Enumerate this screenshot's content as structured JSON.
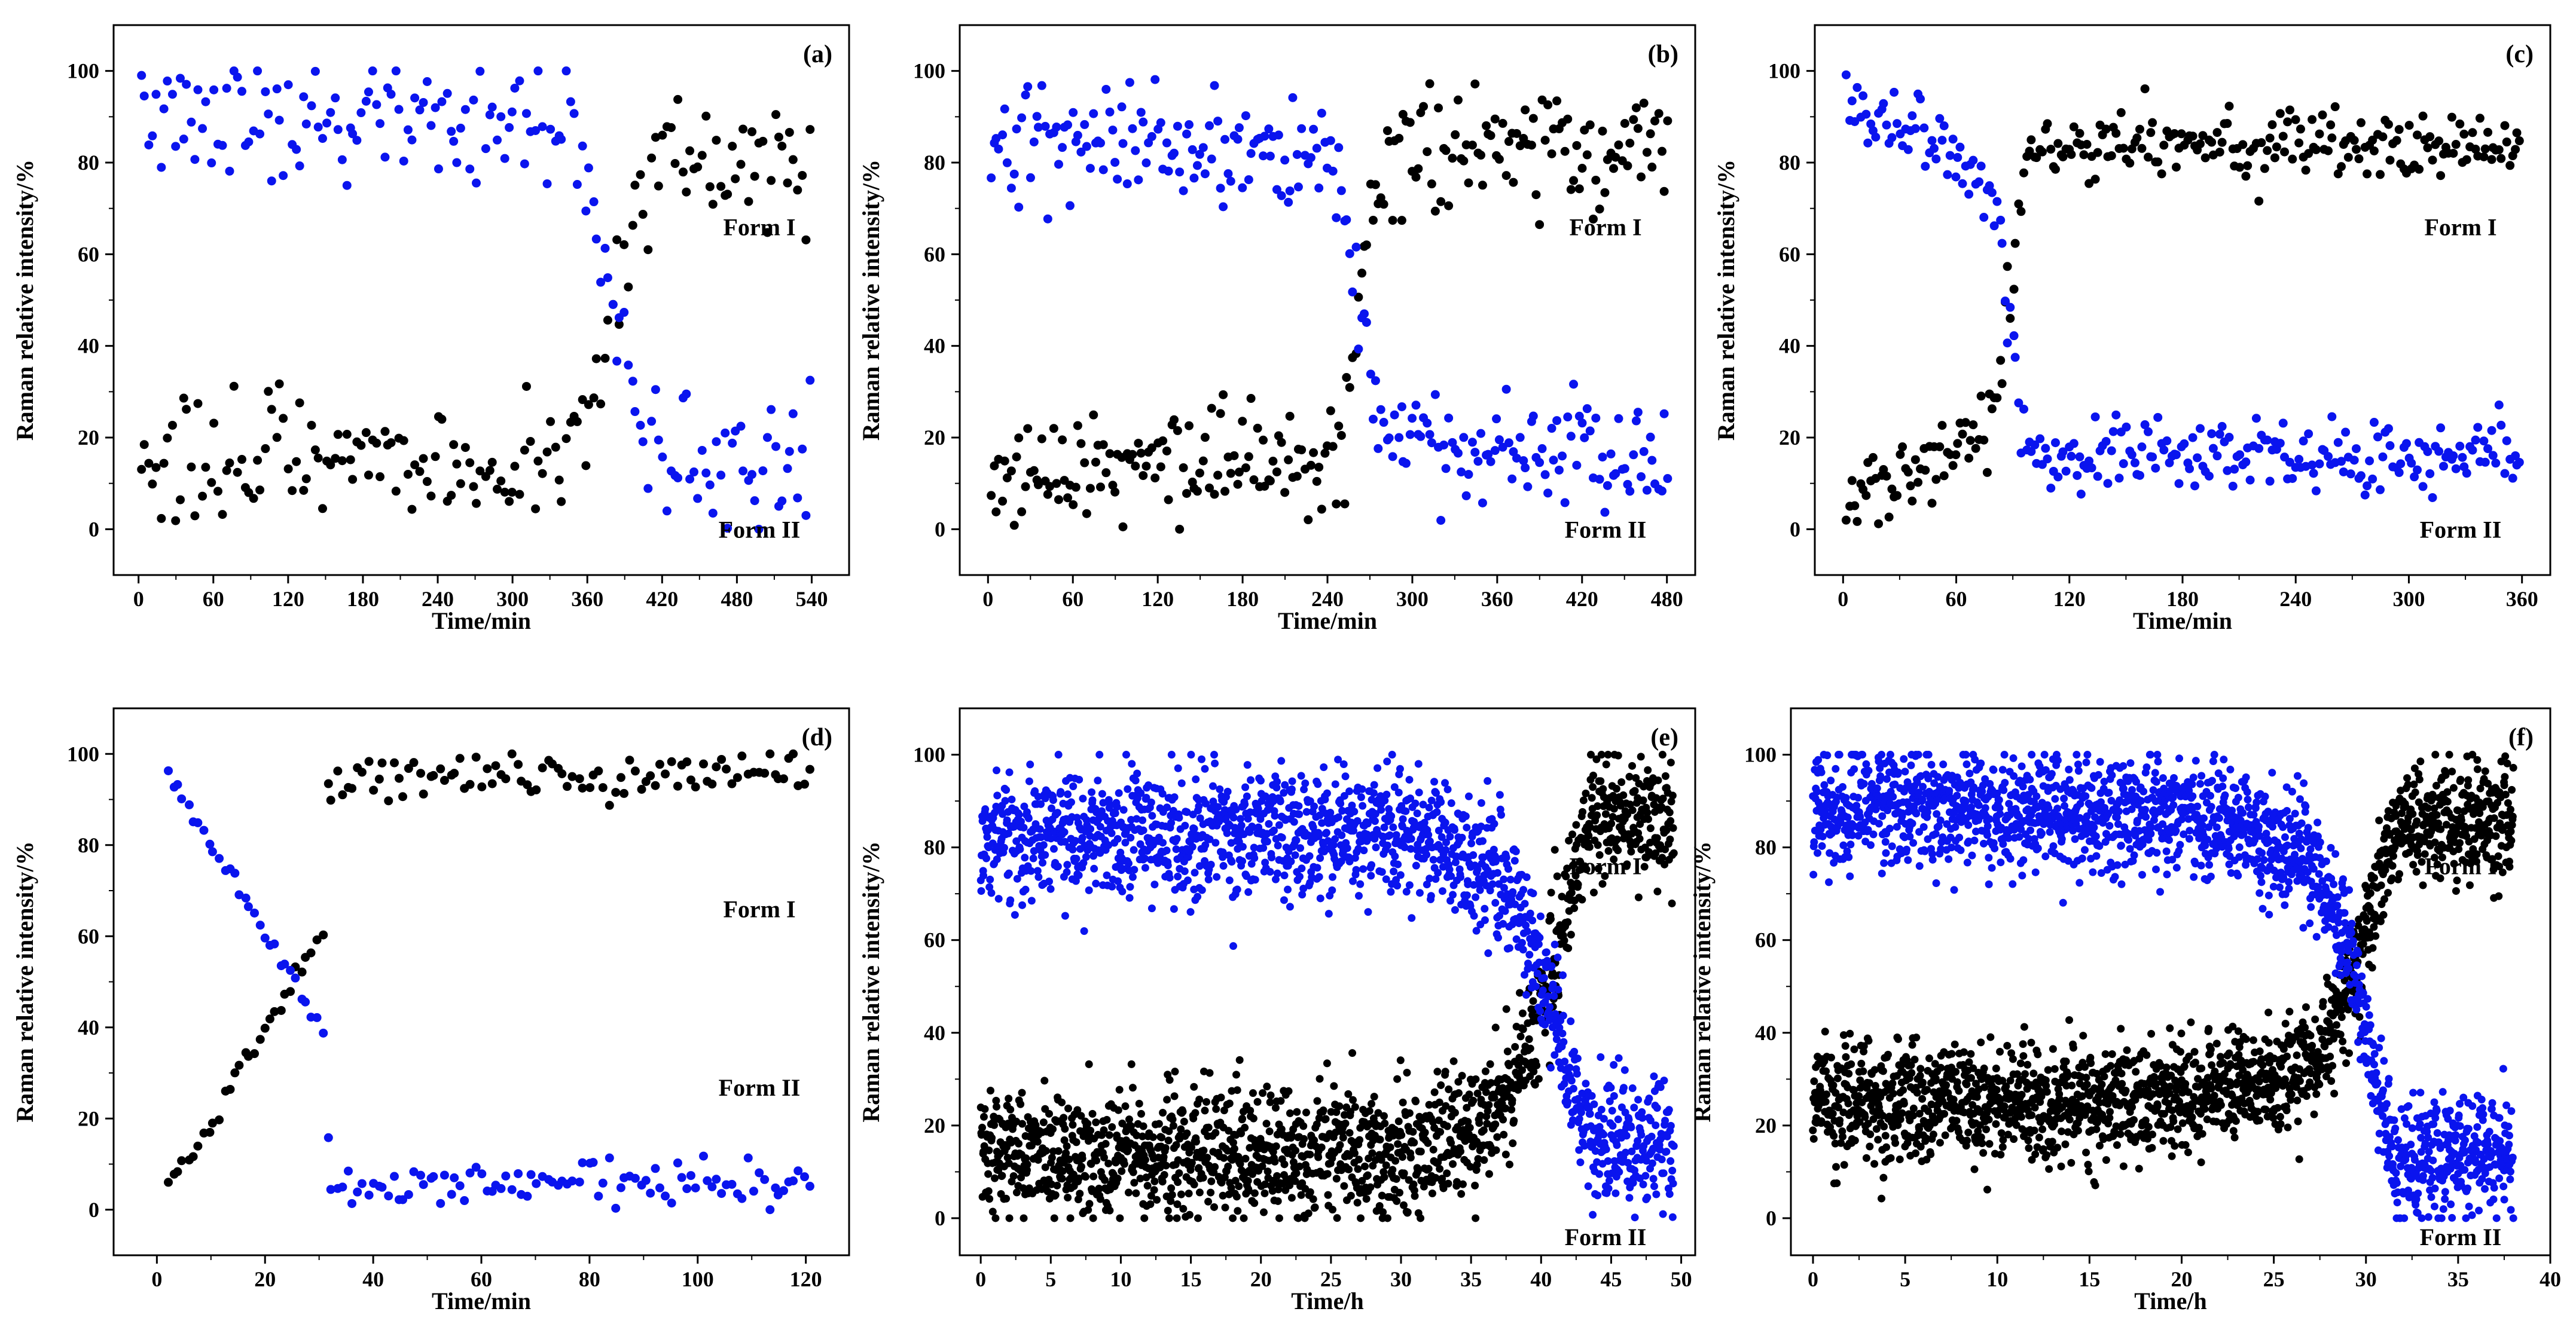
{
  "colors": {
    "form_i": "#000000",
    "form_ii": "#0a14ee"
  },
  "chart_data": [
    {
      "type": "scatter",
      "panel": "(a)",
      "xlabel": "Time/min",
      "ylabel": "Raman relative intensity/%",
      "xlim": [
        -20,
        570
      ],
      "ylim": [
        -10,
        110
      ],
      "xticks": [
        0,
        60,
        120,
        180,
        240,
        300,
        360,
        420,
        480,
        540
      ],
      "yticks": [
        0,
        20,
        40,
        60,
        80,
        100
      ],
      "transition": {
        "t0": 380,
        "tw": 12,
        "end": 540,
        "step": 3.1,
        "iStart": 15,
        "iEnd": 82,
        "iiStart": 90,
        "iiEnd": 15,
        "noise": 7,
        "seed": 11
      },
      "series": [
        {
          "name": "Form I",
          "color": "#000000",
          "description": "rises from ~15 to ~80 around 390 min"
        },
        {
          "name": "Form II",
          "color": "#0a14ee",
          "description": "falls from ~90 to ~15 around 390 min"
        }
      ],
      "labels": {
        "form_i": "Form I",
        "form_ii": "Form II"
      }
    },
    {
      "type": "scatter",
      "panel": "(b)",
      "xlabel": "Time/min",
      "ylabel": "Raman relative intensity/%",
      "xlim": [
        -20,
        500
      ],
      "ylim": [
        -10,
        110
      ],
      "xticks": [
        0,
        60,
        120,
        180,
        240,
        300,
        360,
        420,
        480
      ],
      "yticks": [
        0,
        20,
        40,
        60,
        80,
        100
      ],
      "transition": {
        "t0": 262,
        "tw": 7,
        "end": 480,
        "step": 2.0,
        "iStart": 14,
        "iEnd": 83,
        "iiStart": 83,
        "iiEnd": 17,
        "noise": 6,
        "seed": 23
      },
      "series": [
        {
          "name": "Form I",
          "color": "#000000",
          "description": "rises from ~14 to ~83 around 262 min"
        },
        {
          "name": "Form II",
          "color": "#0a14ee",
          "description": "falls from ~83 to ~17 around 262 min"
        }
      ],
      "labels": {
        "form_i": "Form I",
        "form_ii": "Form II"
      }
    },
    {
      "type": "scatter",
      "panel": "(c)",
      "xlabel": "Time/min",
      "ylabel": "Raman relative intensity/%",
      "xlim": [
        -15,
        375
      ],
      "ylim": [
        -10,
        110
      ],
      "xticks": [
        0,
        60,
        120,
        180,
        240,
        300,
        360
      ],
      "yticks": [
        0,
        20,
        40,
        60,
        80,
        100
      ],
      "transition": {
        "t0": 88,
        "tw": 3,
        "end": 360,
        "step": 1.4,
        "iStart": 6,
        "iEnd": 84,
        "iiStart": 92,
        "iiEnd": 16,
        "noise": 4,
        "seed": 37,
        "drift": true
      },
      "series": [
        {
          "name": "Form I",
          "color": "#000000",
          "description": "rises from ~5 to ~84 around 88 min"
        },
        {
          "name": "Form II",
          "color": "#0a14ee",
          "description": "falls from ~95 to ~16 around 88 min"
        }
      ],
      "labels": {
        "form_i": "Form I",
        "form_ii": "Form II"
      }
    },
    {
      "type": "scatter",
      "panel": "(d)",
      "xlabel": "Time/min",
      "ylabel": "Raman relative intensity/%",
      "xlim": [
        -8,
        128
      ],
      "ylim": [
        -10,
        110
      ],
      "xticks": [
        0,
        20,
        40,
        60,
        80,
        100,
        120
      ],
      "yticks": [
        0,
        20,
        40,
        60,
        80,
        100
      ],
      "transition": {
        "t0": 30.5,
        "tw": 0.6,
        "end": 121,
        "step": 0.95,
        "iStart": 0,
        "iEnd": 95,
        "iiStart": 100,
        "iiEnd": 6,
        "noise": 2.5,
        "seed": 41,
        "linear": true
      },
      "series": [
        {
          "name": "Form I",
          "color": "#000000",
          "description": "rises linearly 0 to ~60 by 30 min, then ~95"
        },
        {
          "name": "Form II",
          "color": "#0a14ee",
          "description": "falls linearly 100 to ~40 by 30 min, then ~6"
        }
      ],
      "labels": {
        "form_i": "Form I",
        "form_ii": "Form II"
      }
    },
    {
      "type": "scatter",
      "panel": "(e)",
      "xlabel": "Time/h",
      "ylabel": "Raman relative intensity/%",
      "xlim": [
        -1.5,
        51
      ],
      "ylim": [
        -8,
        110
      ],
      "xticks": [
        0,
        5,
        10,
        15,
        20,
        25,
        30,
        35,
        40,
        45,
        50
      ],
      "yticks": [
        0,
        20,
        40,
        60,
        80,
        100
      ],
      "transition": {
        "t0": 41.5,
        "tw": 1.6,
        "end": 49.5,
        "step": 0.033,
        "iStart": 14,
        "iEnd": 86,
        "iiStart": 83,
        "iiEnd": 17,
        "noise": 7,
        "seed": 53,
        "dense": true
      },
      "series": [
        {
          "name": "Form I",
          "color": "#000000",
          "description": "~14 rising slowly, sharp rise to ~86 near 41.5 h"
        },
        {
          "name": "Form II",
          "color": "#0a14ee",
          "description": "~83 falling slowly, sharp drop to ~17 near 41.5 h"
        }
      ],
      "labels": {
        "form_i": "Form I",
        "form_ii": "Form II"
      }
    },
    {
      "type": "scatter",
      "panel": "(f)",
      "xlabel": "Time/h",
      "ylabel": "Raman relative intensity/%",
      "xlim": [
        -1.2,
        40
      ],
      "ylim": [
        -8,
        110
      ],
      "xticks": [
        0,
        5,
        10,
        15,
        20,
        25,
        30,
        35,
        40
      ],
      "yticks": [
        0,
        20,
        40,
        60,
        80,
        100
      ],
      "transition": {
        "t0": 30.2,
        "tw": 1.1,
        "end": 38,
        "step": 0.022,
        "iStart": 25,
        "iEnd": 85,
        "iiStart": 88,
        "iiEnd": 13,
        "noise": 6,
        "seed": 67,
        "dense": true
      },
      "series": [
        {
          "name": "Form I",
          "color": "#000000",
          "description": "~25 rising slowly, sharp rise to ~85 near 30 h"
        },
        {
          "name": "Form II",
          "color": "#0a14ee",
          "description": "~88 falling slowly, sharp drop to ~13 near 30 h"
        }
      ],
      "labels": {
        "form_i": "Form I",
        "form_ii": "Form II"
      }
    }
  ]
}
